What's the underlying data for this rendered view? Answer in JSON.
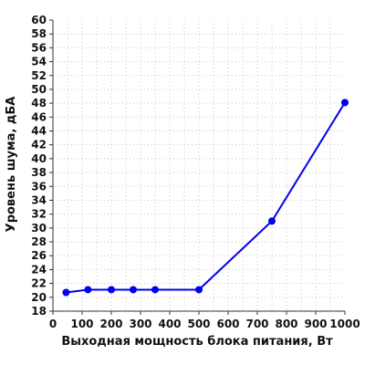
{
  "chart_data": {
    "type": "line",
    "title": "",
    "xlabel": "Выходная мощность блока питания, Вт",
    "ylabel": "Уровень шума, дБА",
    "xlim": [
      0,
      1000
    ],
    "ylim": [
      18,
      60
    ],
    "xticks": [
      0,
      100,
      200,
      300,
      400,
      500,
      600,
      700,
      800,
      900,
      1000
    ],
    "yticks": [
      18,
      20,
      22,
      24,
      26,
      28,
      30,
      32,
      34,
      36,
      38,
      40,
      42,
      44,
      46,
      48,
      50,
      52,
      54,
      56,
      58,
      60
    ],
    "grid": true,
    "series": [
      {
        "color": "#0000ee",
        "x": [
          45,
          120,
          200,
          275,
          350,
          500,
          750,
          1000
        ],
        "y": [
          20.7,
          21.1,
          21.1,
          21.1,
          21.1,
          21.1,
          31.0,
          48.1
        ]
      }
    ]
  }
}
